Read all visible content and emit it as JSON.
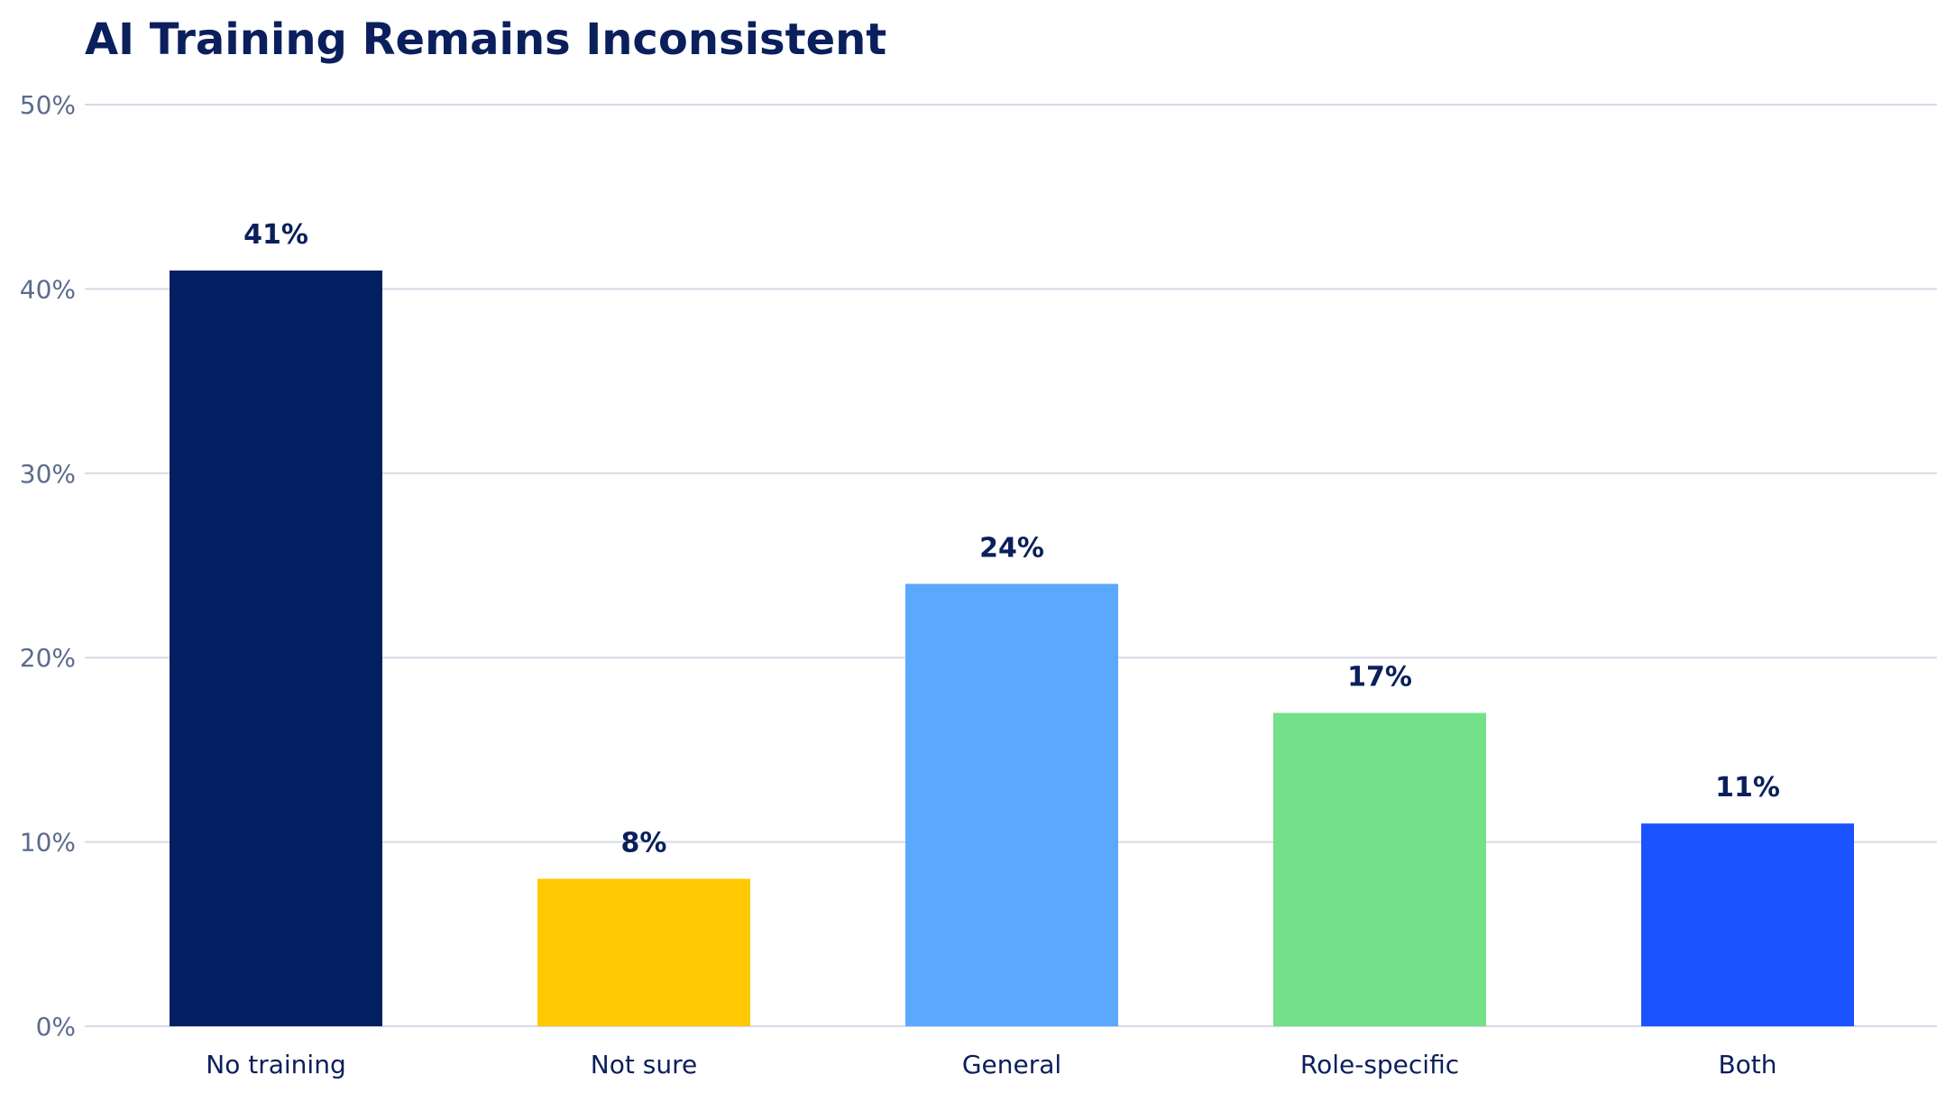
{
  "chart_data": {
    "type": "bar",
    "title": "AI Training Remains Inconsistent",
    "xlabel": "",
    "ylabel": "",
    "categories": [
      "No training",
      "Not sure",
      "General",
      "Role-specific",
      "Both"
    ],
    "values": [
      41,
      8,
      24,
      17,
      11
    ],
    "value_labels": [
      "41%",
      "8%",
      "24%",
      "17%",
      "11%"
    ],
    "colors": [
      "#031f61",
      "#ffc800",
      "#5aa9ff",
      "#74e08a",
      "#1a53ff"
    ],
    "ylim": [
      0,
      50
    ],
    "yticks": [
      0,
      10,
      20,
      30,
      40,
      50
    ],
    "ytick_labels": [
      "0%",
      "10%",
      "20%",
      "30%",
      "40%",
      "50%"
    ],
    "grid": true,
    "legend": "none"
  }
}
